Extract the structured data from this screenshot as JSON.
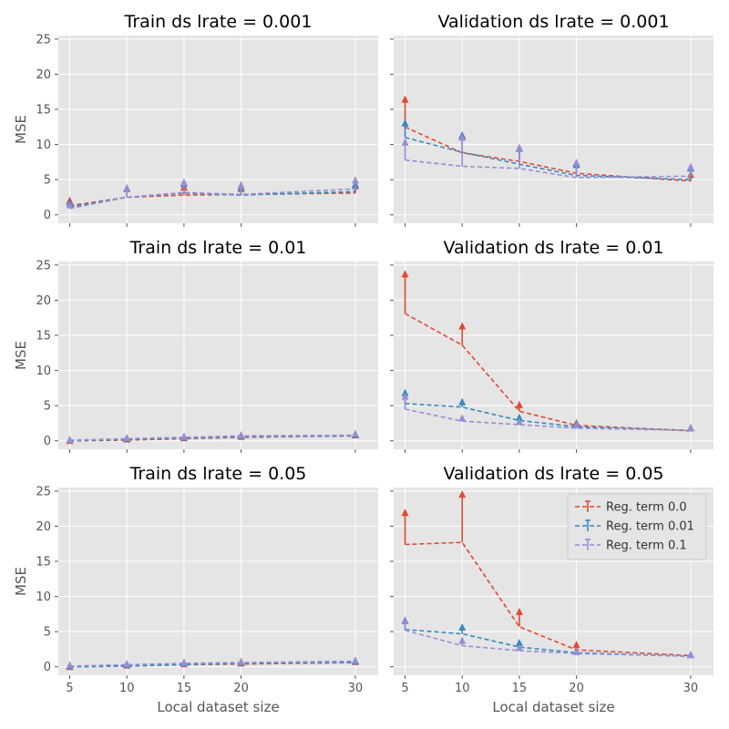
{
  "colors": {
    "series": [
      "#e24a33",
      "#348abd",
      "#988ed5"
    ],
    "panel_background": "#e5e5e5",
    "grid": "#ffffff"
  },
  "chart_data": [
    {
      "type": "line",
      "title": "Train ds lrate = 0.001",
      "xlabel": "",
      "ylabel": "MSE",
      "x": [
        5,
        10,
        15,
        20,
        30
      ],
      "xlim": [
        4,
        32
      ],
      "ylim": [
        -1.2,
        25.5
      ],
      "xticks": [
        5,
        10,
        15,
        20,
        30
      ],
      "yticks": [
        0,
        5,
        10,
        15,
        20,
        25
      ],
      "show_xticklabels": false,
      "show_yticklabels": true,
      "grid": true,
      "series": [
        {
          "name": "Reg. term 0.0",
          "line_style": "dashed",
          "values": [
            1.3,
            2.5,
            2.8,
            2.9,
            3.1
          ],
          "upper": [
            2.2,
            3.9,
            4.1,
            3.9,
            4.3
          ]
        },
        {
          "name": "Reg. term 0.01",
          "line_style": "dashed",
          "values": [
            1.1,
            2.5,
            3.1,
            2.8,
            3.3
          ],
          "upper": [
            1.9,
            3.9,
            4.6,
            4.1,
            4.5
          ]
        },
        {
          "name": "Reg. term 0.1",
          "line_style": "dashed",
          "values": [
            0.9,
            2.5,
            3.2,
            2.9,
            3.7
          ],
          "upper": [
            1.6,
            4.0,
            4.8,
            4.4,
            5.1
          ]
        }
      ]
    },
    {
      "type": "line",
      "title": "Validation ds lrate = 0.001",
      "xlabel": "",
      "ylabel": "",
      "x": [
        5,
        10,
        15,
        20,
        30
      ],
      "xlim": [
        4,
        32
      ],
      "ylim": [
        -1.2,
        25.5
      ],
      "xticks": [
        5,
        10,
        15,
        20,
        30
      ],
      "yticks": [
        0,
        5,
        10,
        15,
        20,
        25
      ],
      "show_xticklabels": false,
      "show_yticklabels": false,
      "grid": true,
      "series": [
        {
          "name": "Reg. term 0.0",
          "line_style": "dashed",
          "values": [
            12.5,
            8.8,
            7.6,
            5.9,
            4.8
          ],
          "upper": [
            16.6,
            11.3,
            9.7,
            7.5,
            5.9
          ]
        },
        {
          "name": "Reg. term 0.01",
          "line_style": "dashed",
          "values": [
            11.0,
            8.9,
            7.2,
            5.6,
            5.0
          ],
          "upper": [
            13.2,
            11.5,
            9.6,
            7.3,
            6.8
          ]
        },
        {
          "name": "Reg. term 0.1",
          "line_style": "dashed",
          "values": [
            7.8,
            6.9,
            6.6,
            5.3,
            5.5
          ],
          "upper": [
            10.5,
            11.2,
            9.7,
            7.6,
            7.0
          ]
        }
      ]
    },
    {
      "type": "line",
      "title": "Train ds lrate = 0.01",
      "xlabel": "",
      "ylabel": "MSE",
      "x": [
        5,
        10,
        15,
        20,
        30
      ],
      "xlim": [
        4,
        32
      ],
      "ylim": [
        -1.2,
        25.5
      ],
      "xticks": [
        5,
        10,
        15,
        20,
        30
      ],
      "yticks": [
        0,
        5,
        10,
        15,
        20,
        25
      ],
      "show_xticklabels": false,
      "show_yticklabels": true,
      "grid": true,
      "series": [
        {
          "name": "Reg. term 0.0",
          "line_style": "dashed",
          "values": [
            0.0,
            0.1,
            0.3,
            0.5,
            0.7
          ],
          "upper": [
            0.2,
            0.4,
            0.6,
            0.8,
            1.0
          ]
        },
        {
          "name": "Reg. term 0.01",
          "line_style": "dashed",
          "values": [
            0.0,
            0.2,
            0.4,
            0.6,
            0.7
          ],
          "upper": [
            0.3,
            0.5,
            0.7,
            0.9,
            1.1
          ]
        },
        {
          "name": "Reg. term 0.1",
          "line_style": "dashed",
          "values": [
            0.1,
            0.3,
            0.5,
            0.7,
            0.8
          ],
          "upper": [
            0.3,
            0.6,
            0.8,
            1.0,
            1.2
          ]
        }
      ]
    },
    {
      "type": "line",
      "title": "Validation ds lrate = 0.01",
      "xlabel": "",
      "ylabel": "",
      "x": [
        5,
        10,
        15,
        20,
        30
      ],
      "xlim": [
        4,
        32
      ],
      "ylim": [
        -1.2,
        25.5
      ],
      "xticks": [
        5,
        10,
        15,
        20,
        30
      ],
      "yticks": [
        0,
        5,
        10,
        15,
        20,
        25
      ],
      "show_xticklabels": false,
      "show_yticklabels": false,
      "grid": true,
      "series": [
        {
          "name": "Reg. term 0.0",
          "line_style": "dashed",
          "values": [
            18.1,
            13.6,
            4.2,
            2.2,
            1.4
          ],
          "upper": [
            23.9,
            16.5,
            5.3,
            2.7,
            2.0
          ]
        },
        {
          "name": "Reg. term 0.01",
          "line_style": "dashed",
          "values": [
            5.3,
            4.8,
            2.9,
            2.0,
            1.5
          ],
          "upper": [
            7.0,
            5.7,
            3.5,
            2.6,
            2.0
          ]
        },
        {
          "name": "Reg. term 0.1",
          "line_style": "dashed",
          "values": [
            4.5,
            2.8,
            2.3,
            1.8,
            1.5
          ],
          "upper": [
            6.5,
            3.4,
            2.9,
            2.4,
            2.0
          ]
        }
      ]
    },
    {
      "type": "line",
      "title": "Train ds lrate = 0.05",
      "xlabel": "Local dataset size",
      "ylabel": "MSE",
      "x": [
        5,
        10,
        15,
        20,
        30
      ],
      "xlim": [
        4,
        32
      ],
      "ylim": [
        -1.2,
        25.5
      ],
      "xticks": [
        5,
        10,
        15,
        20,
        30
      ],
      "yticks": [
        0,
        5,
        10,
        15,
        20,
        25
      ],
      "show_xticklabels": true,
      "show_yticklabels": true,
      "grid": true,
      "series": [
        {
          "name": "Reg. term 0.0",
          "line_style": "dashed",
          "values": [
            0.0,
            0.1,
            0.3,
            0.4,
            0.6
          ],
          "upper": [
            0.2,
            0.4,
            0.6,
            0.7,
            0.9
          ]
        },
        {
          "name": "Reg. term 0.01",
          "line_style": "dashed",
          "values": [
            0.0,
            0.1,
            0.3,
            0.5,
            0.6
          ],
          "upper": [
            0.3,
            0.5,
            0.7,
            0.8,
            1.0
          ]
        },
        {
          "name": "Reg. term 0.1",
          "line_style": "dashed",
          "values": [
            0.1,
            0.3,
            0.5,
            0.6,
            0.8
          ],
          "upper": [
            0.4,
            0.6,
            0.8,
            0.9,
            1.1
          ]
        }
      ]
    },
    {
      "type": "line",
      "title": "Validation ds lrate = 0.05",
      "xlabel": "Local dataset size",
      "ylabel": "",
      "x": [
        5,
        10,
        15,
        20,
        30
      ],
      "xlim": [
        4,
        32
      ],
      "ylim": [
        -1.2,
        25.5
      ],
      "xticks": [
        5,
        10,
        15,
        20,
        30
      ],
      "yticks": [
        0,
        5,
        10,
        15,
        20,
        25
      ],
      "show_xticklabels": true,
      "show_yticklabels": false,
      "grid": true,
      "legend": {
        "placement": "upper-right",
        "entries": [
          "Reg. term 0.0",
          "Reg. term 0.01",
          "Reg. term 0.1"
        ]
      },
      "series": [
        {
          "name": "Reg. term 0.0",
          "line_style": "dashed",
          "values": [
            17.4,
            17.7,
            5.7,
            2.4,
            1.6
          ],
          "upper": [
            22.1,
            24.7,
            8.0,
            3.3,
            1.9
          ]
        },
        {
          "name": "Reg. term 0.01",
          "line_style": "dashed",
          "values": [
            5.3,
            4.7,
            2.8,
            2.0,
            1.5
          ],
          "upper": [
            6.8,
            5.8,
            3.6,
            2.3,
            1.9
          ]
        },
        {
          "name": "Reg. term 0.1",
          "line_style": "dashed",
          "values": [
            5.2,
            3.0,
            2.3,
            1.9,
            1.5
          ],
          "upper": [
            6.7,
            3.9,
            2.9,
            2.3,
            1.9
          ]
        }
      ]
    }
  ]
}
